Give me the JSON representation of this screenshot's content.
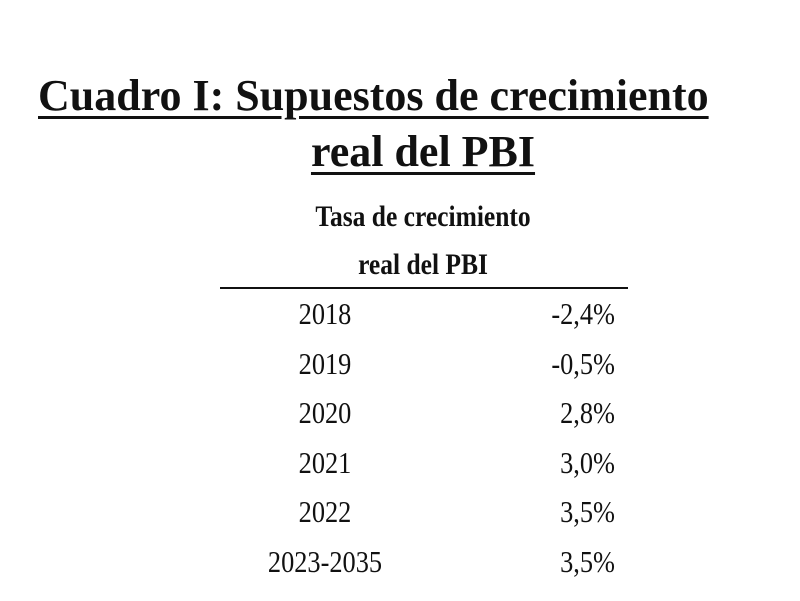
{
  "title": [
    "Cuadro I: Supuestos de crecimiento",
    "real del PBI"
  ],
  "table": {
    "header": [
      "Tasa de crecimiento",
      "real del PBI"
    ],
    "rows": [
      [
        "2018",
        "-2,4%"
      ],
      [
        "2019",
        "-0,5%"
      ],
      [
        "2020",
        "2,8%"
      ],
      [
        "2021",
        "3,0%"
      ],
      [
        "2022",
        "3,5%"
      ],
      [
        "2023-2035",
        "3,5%"
      ]
    ]
  }
}
